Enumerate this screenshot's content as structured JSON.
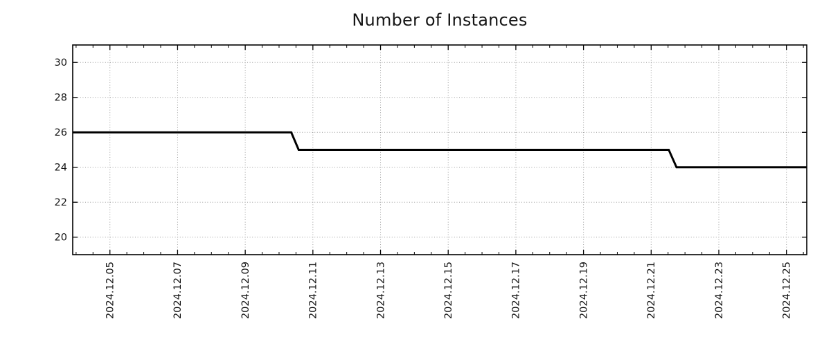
{
  "chart_data": {
    "type": "line",
    "title": "Number of Instances",
    "x_axis": {
      "unit": "date (day of 2024-12, fractional)",
      "lim": [
        3.9,
        25.6
      ],
      "major_tick_positions": [
        5,
        7,
        9,
        11,
        13,
        15,
        17,
        19,
        21,
        23,
        25
      ],
      "tick_labels": [
        "2024.12.05",
        "2024.12.07",
        "2024.12.09",
        "2024.12.11",
        "2024.12.13",
        "2024.12.15",
        "2024.12.17",
        "2024.12.19",
        "2024.12.21",
        "2024.12.23",
        "2024.12.25"
      ],
      "minor_tick_step": 0.5,
      "label_rotation_deg": 90
    },
    "y_axis": {
      "lim": [
        19,
        31
      ],
      "major_ticks": [
        20,
        22,
        24,
        26,
        28,
        30
      ],
      "tick_labels": [
        "20",
        "22",
        "24",
        "26",
        "28",
        "30"
      ]
    },
    "grid": {
      "visible": true,
      "style": "dotted",
      "color": "#9c9c9c"
    },
    "legend": {
      "visible": false
    },
    "series": [
      {
        "name": "instances",
        "color": "#000000",
        "line_width": 3,
        "points": [
          [
            3.9,
            26
          ],
          [
            10.36,
            26
          ],
          [
            10.58,
            25
          ],
          [
            21.52,
            25
          ],
          [
            21.75,
            24
          ],
          [
            25.6,
            24
          ]
        ]
      }
    ],
    "colors": {
      "frame": "#000000",
      "background": "#ffffff",
      "text": "#151515"
    }
  }
}
